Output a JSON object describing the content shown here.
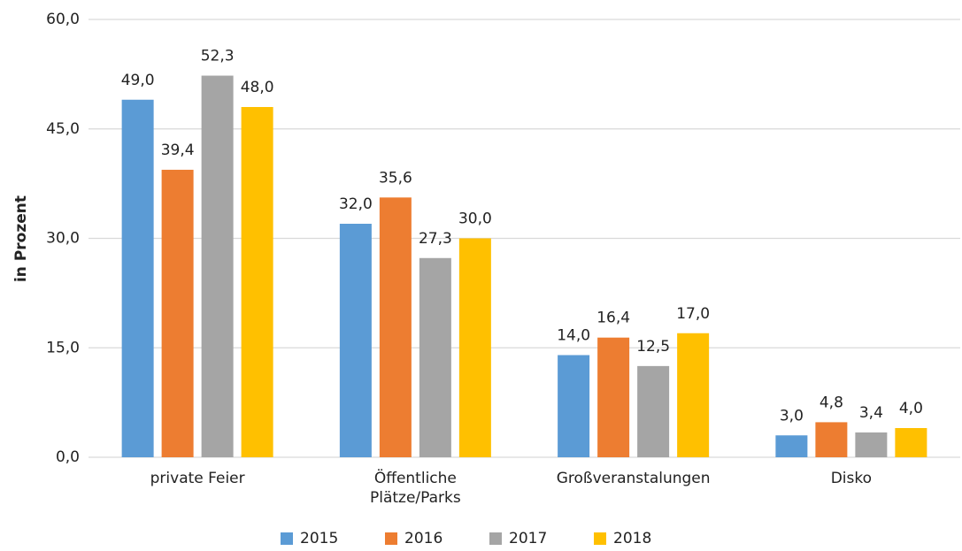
{
  "chart_data": {
    "type": "bar",
    "y_label": "in Prozent",
    "categories": [
      "private Feier",
      "Öffentliche Plätze/Parks",
      "Großveranstalungen",
      "Disko"
    ],
    "series": [
      {
        "name": "2015",
        "color": "#5b9bd5",
        "values": [
          49.0,
          32.0,
          14.0,
          3.0
        ],
        "value_labels": [
          "49,0",
          "32,0",
          "14,0",
          "3,0"
        ]
      },
      {
        "name": "2016",
        "color": "#ed7d31",
        "values": [
          39.4,
          35.6,
          16.4,
          4.8
        ],
        "value_labels": [
          "39,4",
          "35,6",
          "16,4",
          "4,8"
        ]
      },
      {
        "name": "2017",
        "color": "#a5a5a5",
        "values": [
          52.3,
          27.3,
          12.5,
          3.4
        ],
        "value_labels": [
          "52,3",
          "27,3",
          "12,5",
          "3,4"
        ]
      },
      {
        "name": "2018",
        "color": "#ffc000",
        "values": [
          48.0,
          30.0,
          17.0,
          4.0
        ],
        "value_labels": [
          "48,0",
          "30,0",
          "17,0",
          "4,0"
        ]
      }
    ],
    "ylim": [
      0,
      60
    ],
    "yticks": [
      {
        "value": 0,
        "label": "0,0"
      },
      {
        "value": 15,
        "label": "15,0"
      },
      {
        "value": 30,
        "label": "30,0"
      },
      {
        "value": 45,
        "label": "45,0"
      },
      {
        "value": 60,
        "label": "60,0"
      }
    ],
    "grid": true,
    "legend": "bottom"
  }
}
